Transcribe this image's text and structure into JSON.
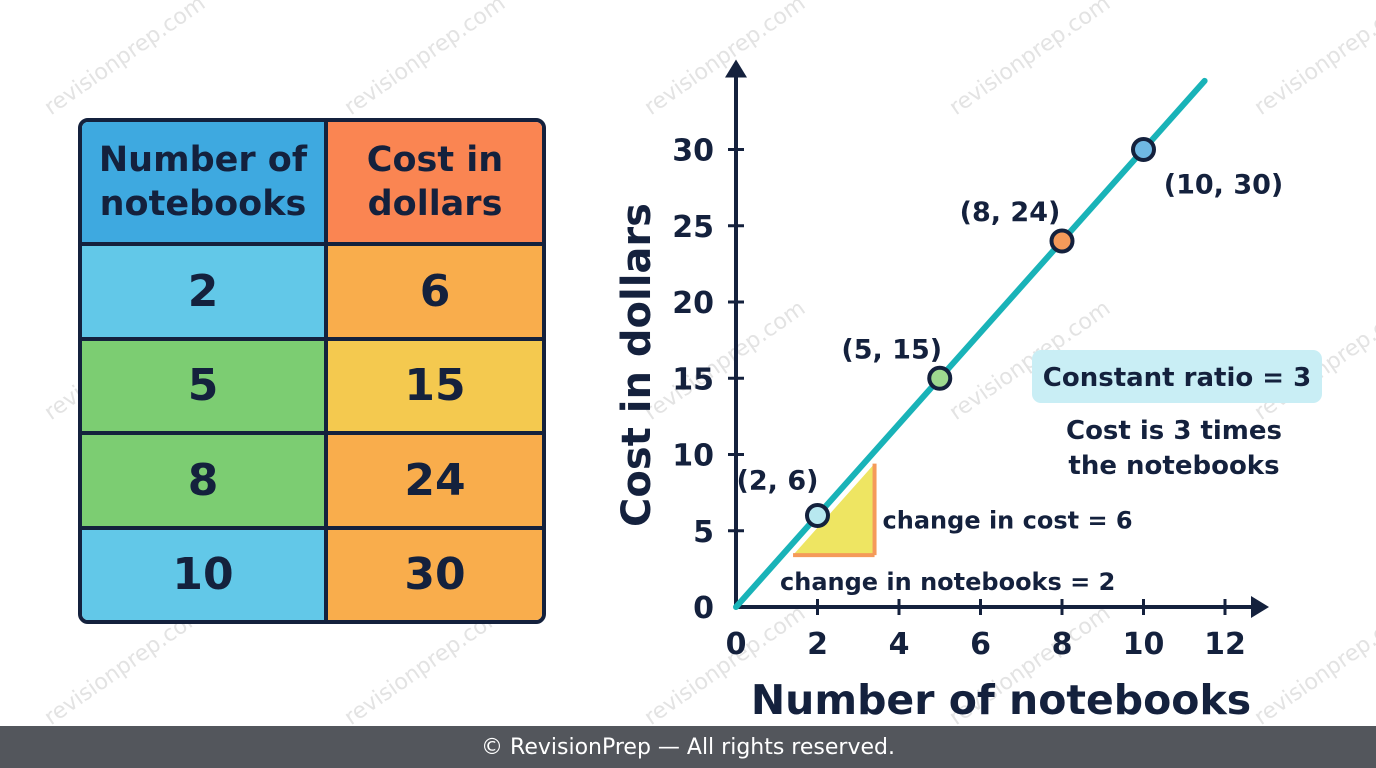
{
  "table": {
    "headers": [
      "Number of\nnotebooks",
      "Cost in\ndollars"
    ],
    "rows": [
      [
        "2",
        "6"
      ],
      [
        "5",
        "15"
      ],
      [
        "8",
        "24"
      ],
      [
        "10",
        "30"
      ]
    ],
    "colors": {
      "header_left": "#3ea9e0",
      "header_right": "#fa8552",
      "left_rows": [
        "#62c8e8",
        "#7ccd72",
        "#7ccd72",
        "#62c8e8"
      ],
      "right_rows": [
        "#f9ad4c",
        "#f4c94f",
        "#f9ad4c",
        "#f9ad4c"
      ]
    }
  },
  "chart_data": {
    "type": "line",
    "xlabel": "Number of notebooks",
    "ylabel": "Cost in dollars",
    "xlim": [
      0,
      12
    ],
    "ylim": [
      0,
      30
    ],
    "xticks": [
      0,
      2,
      4,
      6,
      8,
      10,
      12
    ],
    "yticks": [
      0,
      5,
      10,
      15,
      20,
      25,
      30
    ],
    "grid": false,
    "line": {
      "slope": 3,
      "x_start": 0,
      "x_end": 11.5,
      "color": "#19b3b8"
    },
    "points": [
      {
        "x": 2,
        "y": 6,
        "label": "(2, 6)",
        "fill": "#b8e8f0"
      },
      {
        "x": 5,
        "y": 15,
        "label": "(5, 15)",
        "fill": "#9ed98f"
      },
      {
        "x": 8,
        "y": 24,
        "label": "(8, 24)",
        "fill": "#f59a5a"
      },
      {
        "x": 10,
        "y": 30,
        "label": "(10, 30)",
        "fill": "#6fb8e3"
      }
    ],
    "slope_triangle": {
      "x_from": 1.4,
      "x_to": 3.4,
      "y_from": 3.4,
      "y_to": 9.4,
      "fill": "#eee562",
      "edge": "#f59a5a",
      "rise_label": "change in cost = 6",
      "run_label": "change in notebooks = 2"
    },
    "annotations": {
      "ratio_label": "Constant ratio = 3",
      "ratio_box_color": "#c9eef5",
      "note_lines": [
        "Cost is 3 times",
        "the notebooks"
      ]
    }
  },
  "watermark": "revisionprep.com",
  "footer": "© RevisionPrep — All rights reserved."
}
